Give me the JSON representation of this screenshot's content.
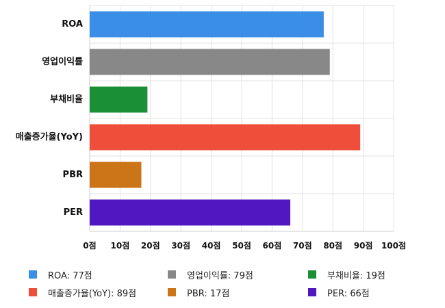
{
  "chart_data": {
    "type": "bar",
    "orientation": "horizontal",
    "categories": [
      "ROA",
      "영업이익률",
      "부채비율",
      "매출증가율(YoY)",
      "PBR",
      "PER"
    ],
    "values": [
      77,
      79,
      19,
      89,
      17,
      66
    ],
    "colors": [
      "#3a8ee6",
      "#888888",
      "#1a8f35",
      "#ef4f3a",
      "#cc7418",
      "#5118c2"
    ],
    "xlim": [
      0,
      100
    ],
    "tick_step": 10,
    "tick_suffix": "점",
    "tick_labels": [
      "0점",
      "10점",
      "20점",
      "30점",
      "40점",
      "50점",
      "60점",
      "70점",
      "80점",
      "90점",
      "100점"
    ],
    "grid": true,
    "legend_position": "bottom",
    "legend": [
      {
        "label": "ROA: 77점",
        "color": "#3a8ee6"
      },
      {
        "label": "영업이익률: 79점",
        "color": "#888888"
      },
      {
        "label": "부채비율: 19점",
        "color": "#1a8f35"
      },
      {
        "label": "매출증가율(YoY): 89점",
        "color": "#ef4f3a"
      },
      {
        "label": "PBR: 17점",
        "color": "#cc7418"
      },
      {
        "label": "PER: 66점",
        "color": "#5118c2"
      }
    ]
  }
}
